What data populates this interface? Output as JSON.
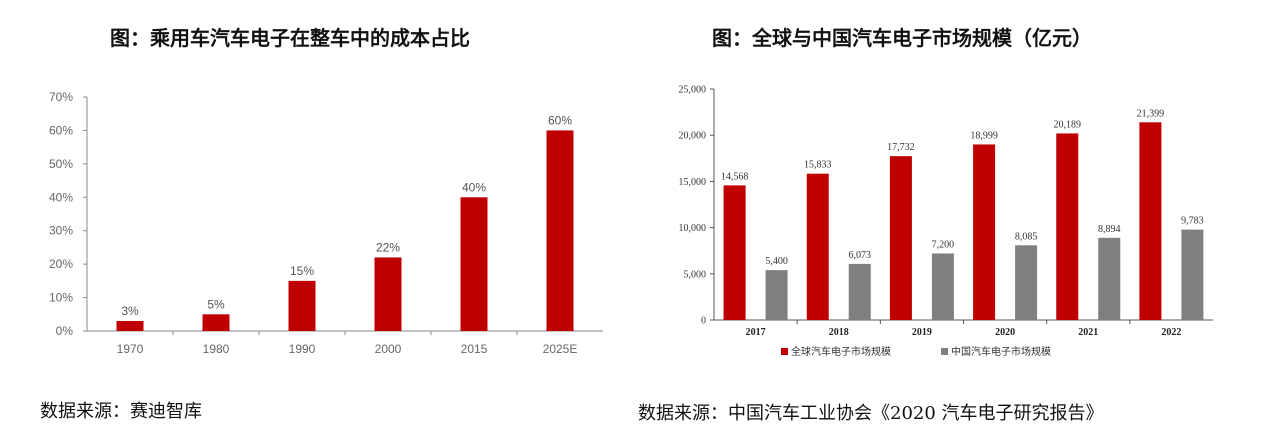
{
  "left": {
    "title": "图：乘用车汽车电子在整车中的成本占比",
    "source": "数据来源：赛迪智库"
  },
  "right": {
    "title": "图：全球与中国汽车电子市场规模（亿元）",
    "source": "数据来源：中国汽车工业协会《2020 汽车电子研究报告》"
  },
  "chart_data": [
    {
      "type": "bar",
      "title": "图：乘用车汽车电子在整车中的成本占比",
      "categories": [
        "1970",
        "1980",
        "1990",
        "2000",
        "2015",
        "2025E"
      ],
      "values": [
        3,
        5,
        15,
        22,
        40,
        60
      ],
      "value_labels": [
        "3%",
        "5%",
        "15%",
        "22%",
        "40%",
        "60%"
      ],
      "ylim": [
        0,
        70
      ],
      "yticks": [
        "0%",
        "10%",
        "20%",
        "30%",
        "40%",
        "50%",
        "60%",
        "70%"
      ],
      "xlabel": "",
      "ylabel": "",
      "color": "#c00000"
    },
    {
      "type": "bar",
      "title": "图：全球与中国汽车电子市场规模（亿元）",
      "categories": [
        "2017",
        "2018",
        "2019",
        "2020",
        "2021",
        "2022"
      ],
      "series": [
        {
          "name": "全球汽车电子市场规模",
          "values": [
            14568,
            15833,
            17732,
            18999,
            20189,
            21399
          ],
          "labels": [
            "14,568",
            "15,833",
            "17,732",
            "18,999",
            "20,189",
            "21,399"
          ],
          "color": "#c00000"
        },
        {
          "name": "中国汽车电子市场规模",
          "values": [
            5400,
            6073,
            7200,
            8085,
            8894,
            9783
          ],
          "labels": [
            "5,400",
            "6,073",
            "7,200",
            "8,085",
            "8,894",
            "9,783"
          ],
          "color": "#7f7f7f"
        }
      ],
      "ylim": [
        0,
        25000
      ],
      "yticks": [
        "0",
        "5,000",
        "10,000",
        "15,000",
        "20,000",
        "25,000"
      ],
      "legend": "bottom",
      "xlabel": "",
      "ylabel": ""
    }
  ]
}
